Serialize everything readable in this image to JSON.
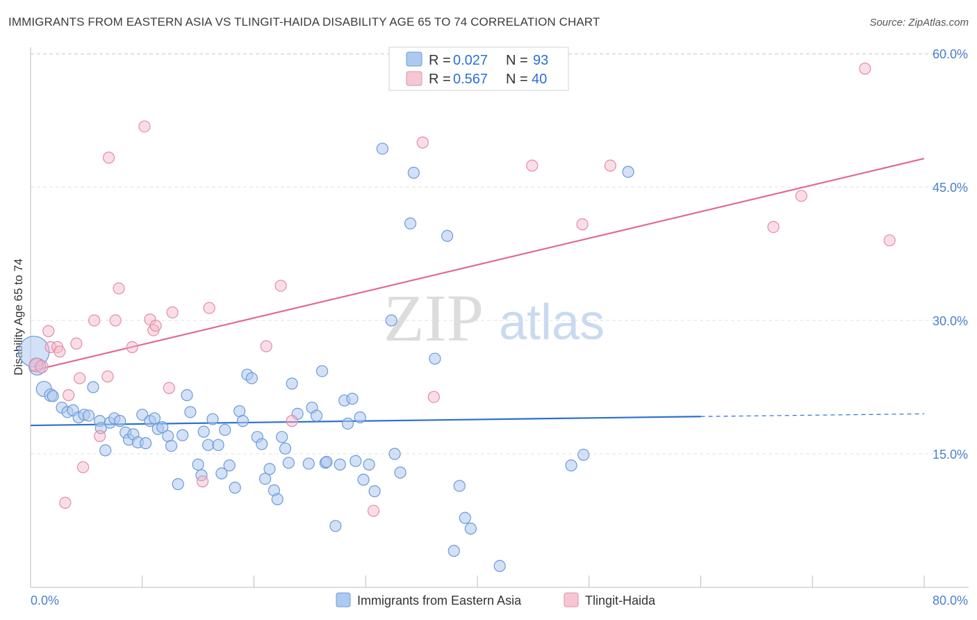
{
  "title": "IMMIGRANTS FROM EASTERN ASIA VS TLINGIT-HAIDA DISABILITY AGE 65 TO 74 CORRELATION CHART",
  "source": "Source: ZipAtlas.com",
  "watermark": {
    "zip": "ZIP",
    "atlas": "atlas"
  },
  "colors": {
    "blue": "#6699dd",
    "blue_fill": "#aec9ef",
    "blue_line": "#2a6fcf",
    "pink": "#e090aa",
    "pink_fill": "#f5b6c8",
    "pink_line": "#e06a95",
    "grid": "#e0e0e0",
    "tick_text": "#4a7fcf"
  },
  "chart_data": {
    "type": "scatter",
    "title": "IMMIGRANTS FROM EASTERN ASIA VS TLINGIT-HAIDA DISABILITY AGE 65 TO 74 CORRELATION CHART",
    "xlabel": "",
    "ylabel": "Disability Age 65 to 74",
    "xlim": [
      0,
      80
    ],
    "ylim": [
      0,
      62
    ],
    "x_tick_labels": [
      "0.0%",
      "80.0%"
    ],
    "y_ticks": [
      15,
      30,
      45,
      60
    ],
    "y_tick_labels": [
      "15.0%",
      "30.0%",
      "45.0%",
      "60.0%"
    ],
    "grid": true,
    "legend_position": "top-center",
    "legend": [
      {
        "r_label": "R =",
        "r_value": "0.027",
        "n_label": "N =",
        "n_value": "93"
      },
      {
        "r_label": "R =",
        "r_value": "0.567",
        "n_label": "N =",
        "n_value": "40"
      }
    ],
    "series": [
      {
        "name": "Immigrants from Eastern Asia",
        "color": "#6699dd",
        "trend": {
          "x0": 0,
          "y0": 18.2,
          "x1": 60,
          "y1": 19.2,
          "dash_x1": 80,
          "dash_y1": 19.5
        },
        "points": [
          [
            0.3,
            26.5,
            22
          ],
          [
            0.6,
            24.8,
            12
          ],
          [
            1.2,
            22.3,
            11
          ],
          [
            1.8,
            21.6,
            9
          ],
          [
            2.0,
            21.5,
            8
          ],
          [
            2.8,
            20.2,
            8
          ],
          [
            3.3,
            19.7,
            8
          ],
          [
            3.8,
            19.9,
            8
          ],
          [
            4.3,
            19.1,
            8
          ],
          [
            4.8,
            19.4,
            8
          ],
          [
            5.2,
            19.3,
            8
          ],
          [
            5.6,
            22.5,
            8
          ],
          [
            6.2,
            18.7,
            8
          ],
          [
            6.3,
            17.9,
            8
          ],
          [
            6.7,
            15.4,
            8
          ],
          [
            7.1,
            18.5,
            8
          ],
          [
            7.5,
            19.0,
            8
          ],
          [
            8.0,
            18.7,
            8
          ],
          [
            8.5,
            17.4,
            8
          ],
          [
            8.8,
            16.6,
            8
          ],
          [
            9.2,
            17.2,
            8
          ],
          [
            9.6,
            16.3,
            8
          ],
          [
            10.0,
            19.4,
            8
          ],
          [
            10.3,
            16.2,
            8
          ],
          [
            10.7,
            18.7,
            8
          ],
          [
            11.1,
            19.0,
            8
          ],
          [
            11.4,
            17.8,
            8
          ],
          [
            11.8,
            18.0,
            8
          ],
          [
            12.3,
            17.0,
            8
          ],
          [
            12.6,
            15.9,
            8
          ],
          [
            13.2,
            11.6,
            8
          ],
          [
            13.6,
            17.1,
            8
          ],
          [
            14.0,
            21.6,
            8
          ],
          [
            14.3,
            19.7,
            8
          ],
          [
            15.0,
            13.8,
            8
          ],
          [
            15.3,
            12.6,
            8
          ],
          [
            15.5,
            17.5,
            8
          ],
          [
            15.9,
            16.0,
            8
          ],
          [
            16.3,
            18.9,
            8
          ],
          [
            16.8,
            16.0,
            8
          ],
          [
            17.1,
            12.8,
            8
          ],
          [
            17.4,
            17.7,
            8
          ],
          [
            17.8,
            13.7,
            8
          ],
          [
            18.3,
            11.2,
            8
          ],
          [
            18.7,
            19.8,
            8
          ],
          [
            19.0,
            18.7,
            8
          ],
          [
            19.4,
            23.9,
            8
          ],
          [
            19.8,
            23.5,
            8
          ],
          [
            20.3,
            16.9,
            8
          ],
          [
            20.7,
            16.1,
            8
          ],
          [
            21.0,
            12.2,
            8
          ],
          [
            21.4,
            13.3,
            8
          ],
          [
            21.8,
            10.9,
            8
          ],
          [
            22.1,
            9.9,
            8
          ],
          [
            22.5,
            16.9,
            8
          ],
          [
            22.8,
            15.6,
            8
          ],
          [
            23.1,
            14.0,
            8
          ],
          [
            23.4,
            22.9,
            8
          ],
          [
            23.9,
            19.5,
            8
          ],
          [
            24.9,
            13.9,
            8
          ],
          [
            25.2,
            20.2,
            8
          ],
          [
            25.6,
            19.3,
            8
          ],
          [
            26.1,
            24.3,
            8
          ],
          [
            26.4,
            14.0,
            8
          ],
          [
            26.5,
            14.1,
            8
          ],
          [
            27.3,
            6.9,
            8
          ],
          [
            27.7,
            13.8,
            8
          ],
          [
            28.1,
            21.0,
            8
          ],
          [
            28.4,
            18.4,
            8
          ],
          [
            28.8,
            21.2,
            8
          ],
          [
            29.1,
            14.2,
            8
          ],
          [
            29.5,
            19.1,
            8
          ],
          [
            29.8,
            12.1,
            8
          ],
          [
            30.3,
            13.8,
            8
          ],
          [
            30.8,
            10.8,
            8
          ],
          [
            31.5,
            49.3,
            8
          ],
          [
            32.3,
            30.0,
            8
          ],
          [
            32.6,
            15.0,
            8
          ],
          [
            33.1,
            12.9,
            8
          ],
          [
            34.0,
            40.9,
            8
          ],
          [
            34.3,
            46.6,
            8
          ],
          [
            36.2,
            25.7,
            8
          ],
          [
            37.3,
            39.5,
            8
          ],
          [
            37.9,
            4.1,
            8
          ],
          [
            38.4,
            11.4,
            8
          ],
          [
            38.9,
            7.8,
            8
          ],
          [
            39.4,
            6.6,
            8
          ],
          [
            42.0,
            2.4,
            8
          ],
          [
            48.4,
            13.7,
            8
          ],
          [
            49.5,
            14.9,
            8
          ],
          [
            53.5,
            46.7,
            8
          ]
        ]
      },
      {
        "name": "Tlingit-Haida",
        "color": "#e090aa",
        "trend": {
          "x0": 0,
          "y0": 24.3,
          "x1": 80,
          "y1": 48.2
        },
        "points": [
          [
            0.5,
            25.0,
            10
          ],
          [
            1.0,
            24.8,
            9
          ],
          [
            1.8,
            27.0,
            8
          ],
          [
            1.6,
            28.8,
            8
          ],
          [
            2.4,
            27.0,
            8
          ],
          [
            2.6,
            26.5,
            8
          ],
          [
            3.4,
            21.6,
            8
          ],
          [
            4.1,
            27.4,
            8
          ],
          [
            4.4,
            23.5,
            8
          ],
          [
            4.7,
            13.5,
            8
          ],
          [
            3.1,
            9.5,
            8
          ],
          [
            5.7,
            30.0,
            8
          ],
          [
            6.2,
            17.0,
            8
          ],
          [
            6.9,
            23.7,
            8
          ],
          [
            7.0,
            48.3,
            8
          ],
          [
            7.6,
            30.0,
            8
          ],
          [
            7.9,
            33.6,
            8
          ],
          [
            9.1,
            27.0,
            8
          ],
          [
            10.2,
            51.8,
            8
          ],
          [
            10.7,
            30.1,
            8
          ],
          [
            11.0,
            28.9,
            8
          ],
          [
            11.2,
            29.4,
            8
          ],
          [
            12.4,
            22.4,
            8
          ],
          [
            12.7,
            30.9,
            8
          ],
          [
            15.4,
            11.9,
            8
          ],
          [
            16.0,
            31.4,
            8
          ],
          [
            21.1,
            27.1,
            8
          ],
          [
            22.4,
            33.9,
            8
          ],
          [
            23.4,
            18.7,
            8
          ],
          [
            30.7,
            8.6,
            8
          ],
          [
            35.1,
            50.0,
            8
          ],
          [
            36.1,
            21.4,
            8
          ],
          [
            44.9,
            47.4,
            8
          ],
          [
            49.4,
            40.8,
            8
          ],
          [
            51.9,
            47.4,
            8
          ],
          [
            66.5,
            40.5,
            8
          ],
          [
            69.0,
            44.0,
            8
          ],
          [
            74.7,
            58.3,
            8
          ],
          [
            76.9,
            39.0,
            8
          ]
        ]
      }
    ]
  },
  "legend_bottom": [
    {
      "label": "Immigrants from Eastern Asia"
    },
    {
      "label": "Tlingit-Haida"
    }
  ]
}
